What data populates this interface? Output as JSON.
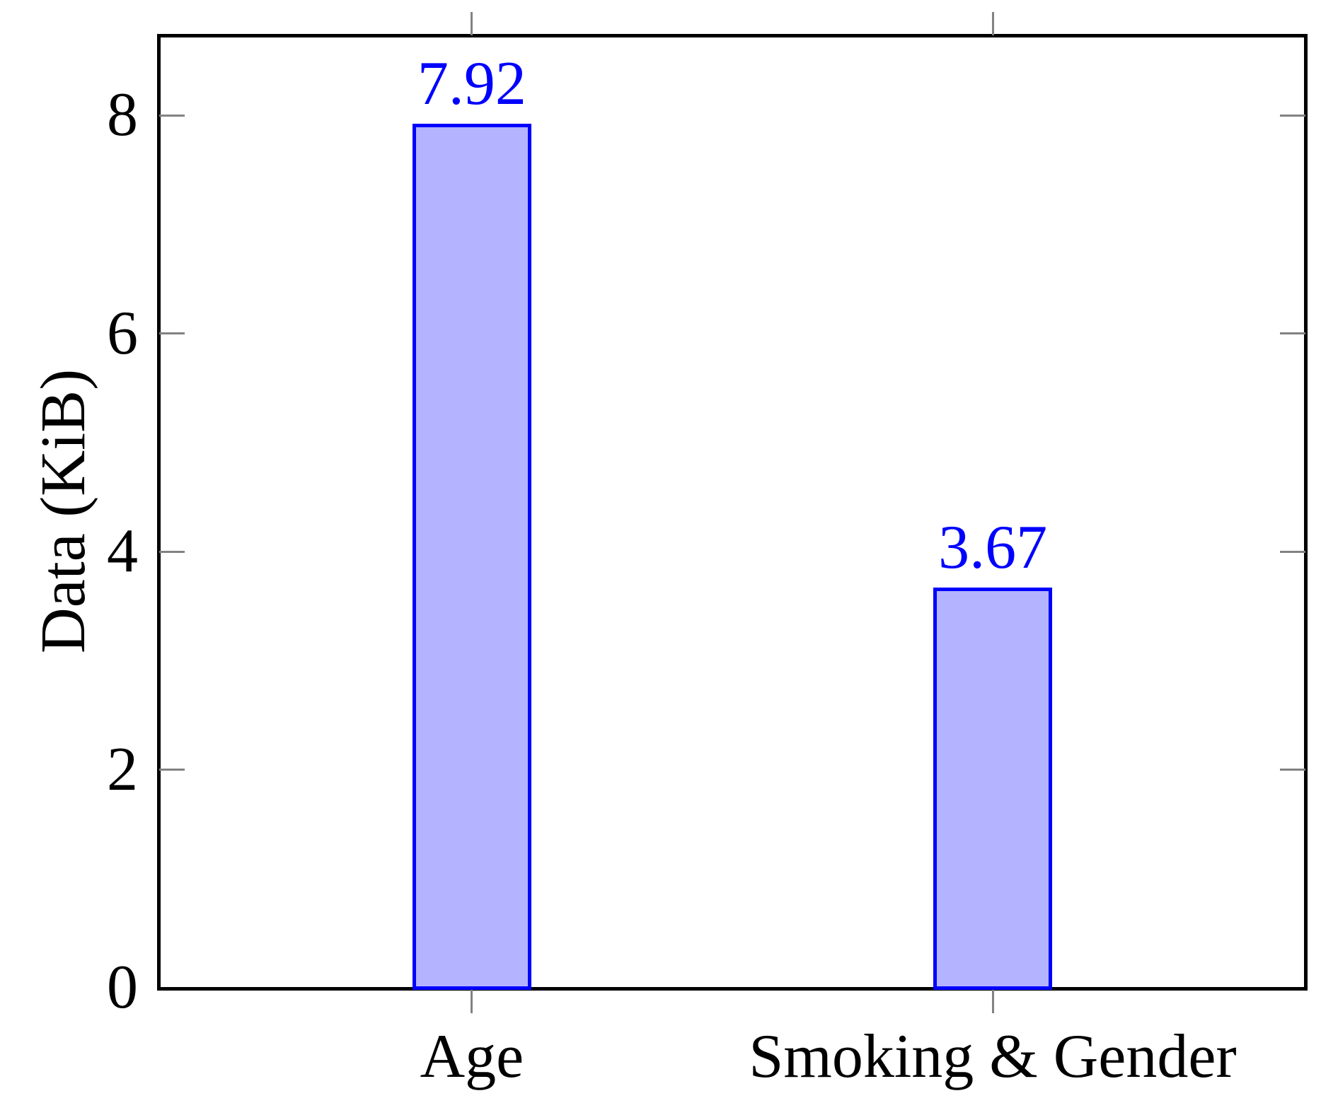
{
  "chart_data": {
    "type": "bar",
    "title": "",
    "categories": [
      "Age",
      "Smoking & Gender"
    ],
    "values": [
      7.92,
      3.67
    ],
    "value_labels": [
      "7.92",
      "3.67"
    ],
    "xlabel": "",
    "ylabel": "Data (KiB)",
    "ylim": [
      0,
      8.73
    ],
    "yticks": [
      0,
      2,
      4,
      6,
      8
    ],
    "ytick_labels": [
      "0",
      "2",
      "4",
      "6",
      "8"
    ],
    "grid": false,
    "legend": false,
    "bar_fill_color": "#b3b3ff",
    "bar_border_color": "#0000ff",
    "value_label_color": "#0000ff",
    "tick_color": "#828282",
    "frame_color": "#000000"
  }
}
